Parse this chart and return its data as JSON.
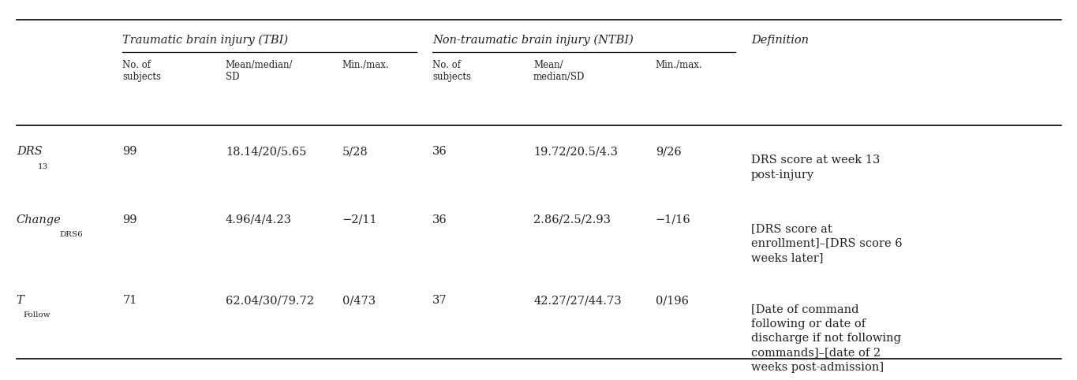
{
  "bg_color": "#ffffff",
  "header1_text": "Traumatic brain injury (TBI)",
  "header2_text": "Non-traumatic brain injury (NTBI)",
  "header3_text": "Definition",
  "subheaders": [
    [
      "No. of",
      "subjects"
    ],
    [
      "Mean/median/",
      "SD"
    ],
    [
      "Min./max."
    ],
    [
      "No. of",
      "subjects"
    ],
    [
      "Mean/",
      "median/SD"
    ],
    [
      "Min./max."
    ]
  ],
  "rows": [
    {
      "label_main": "DRS",
      "label_sub": "13",
      "label_italic": true,
      "tbi_n": "99",
      "tbi_mean": "18.14/20/5.65",
      "tbi_minmax": "5/28",
      "ntbi_n": "36",
      "ntbi_mean": "19.72/20.5/4.3",
      "ntbi_minmax": "9/26",
      "definition": "DRS score at week 13\npost-injury"
    },
    {
      "label_main": "Change",
      "label_sub": "DRS6",
      "label_italic": true,
      "tbi_n": "99",
      "tbi_mean": "4.96/4/4.23",
      "tbi_minmax": "−2/11",
      "ntbi_n": "36",
      "ntbi_mean": "2.86/2.5/2.93",
      "ntbi_minmax": "−1/16",
      "definition": "[DRS score at\nenrollment]–[DRS score 6\nweeks later]"
    },
    {
      "label_main": "T",
      "label_sub": "Follow",
      "label_italic": true,
      "tbi_n": "71",
      "tbi_mean": "62.04/30/79.72",
      "tbi_minmax": "0/473",
      "ntbi_n": "37",
      "ntbi_mean": "42.27/27/44.73",
      "ntbi_minmax": "0/196",
      "definition": "[Date of command\nfollowing or date of\ndischarge if not following\ncommands]–[date of 2\nweeks post-admission]"
    }
  ],
  "font_size": 10.5,
  "sub_font_size": 8.5,
  "font_family": "DejaVu Serif",
  "text_color": "#222222"
}
